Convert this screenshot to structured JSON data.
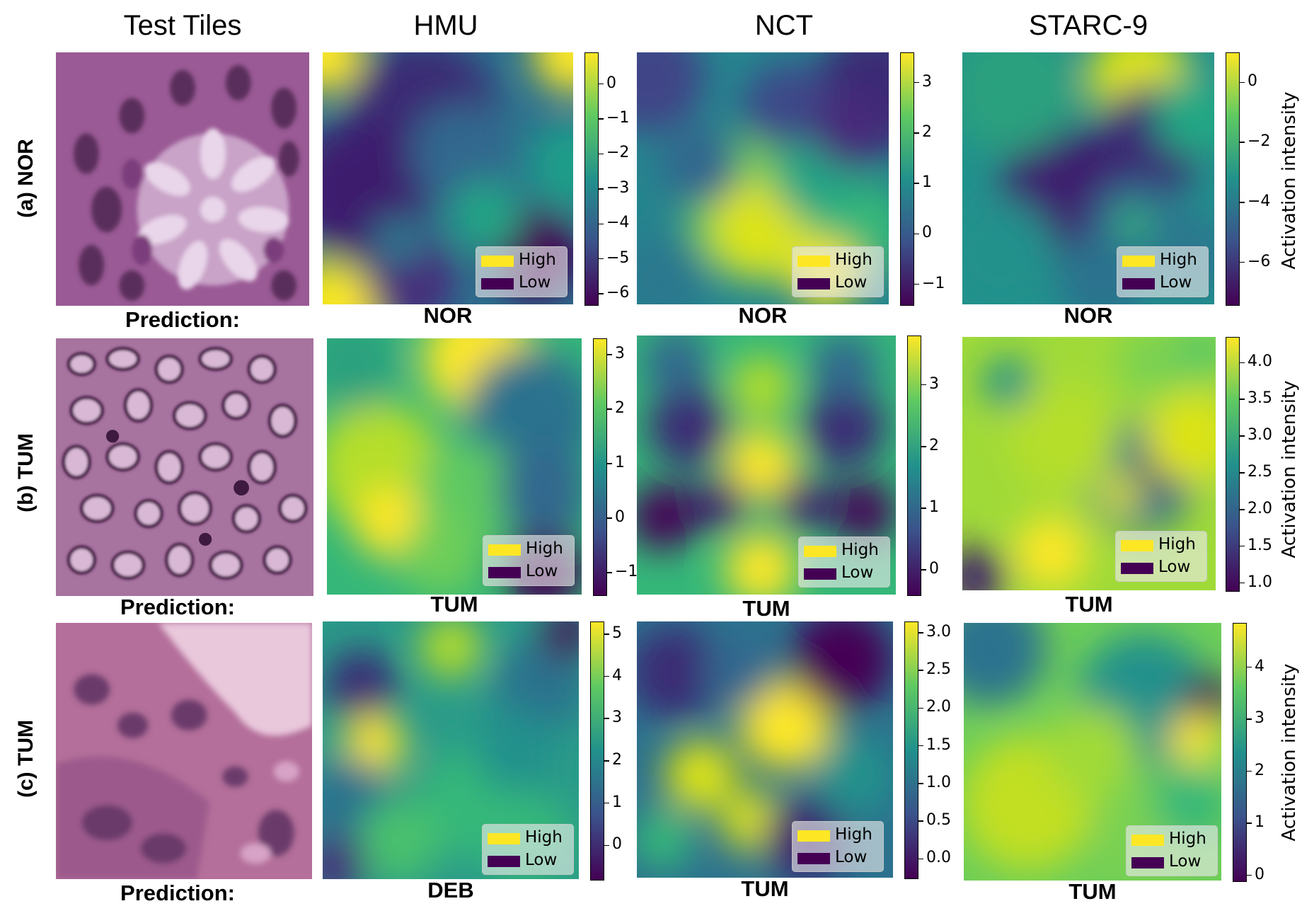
{
  "chart_data": {
    "type": "heatmap",
    "columns": [
      "Test Tiles",
      "HMU",
      "NCT",
      "STARC-9"
    ],
    "prediction_label": "Prediction:",
    "legend": {
      "high": "High",
      "low": "Low"
    },
    "colorbar_label": "Activation intensity",
    "colormap": {
      "high": "#fde725",
      "low": "#440154"
    },
    "rows": [
      {
        "label": "(a) NOR",
        "panels": [
          {
            "model": "HMU",
            "prediction": "NOR",
            "ticks": [
              "0",
              "−1",
              "−2",
              "−3",
              "−4",
              "−5",
              "−6"
            ],
            "range": [
              -6.3,
              0.9
            ]
          },
          {
            "model": "NCT",
            "prediction": "NOR",
            "ticks": [
              "3",
              "2",
              "1",
              "0",
              "−1"
            ],
            "range": [
              -1.4,
              3.6
            ]
          },
          {
            "model": "STARC-9",
            "prediction": "NOR",
            "ticks": [
              "0",
              "−2",
              "−4",
              "−6"
            ],
            "range": [
              -7.4,
              1.0
            ]
          }
        ]
      },
      {
        "label": "(b) TUM",
        "panels": [
          {
            "model": "HMU",
            "prediction": "TUM",
            "ticks": [
              "3",
              "2",
              "1",
              "0",
              "−1"
            ],
            "range": [
              -1.4,
              3.3
            ]
          },
          {
            "model": "NCT",
            "prediction": "TUM",
            "ticks": [
              "3",
              "2",
              "1",
              "0"
            ],
            "range": [
              -0.4,
              3.8
            ]
          },
          {
            "model": "STARC-9",
            "prediction": "TUM",
            "ticks": [
              "4.0",
              "3.5",
              "3.0",
              "2.5",
              "2.0",
              "1.5",
              "1.0"
            ],
            "range": [
              0.9,
              4.35
            ]
          }
        ]
      },
      {
        "label": "(c) TUM",
        "panels": [
          {
            "model": "HMU",
            "prediction": "DEB",
            "ticks": [
              "5",
              "4",
              "3",
              "2",
              "1",
              "0"
            ],
            "range": [
              -0.8,
              5.3
            ]
          },
          {
            "model": "NCT",
            "prediction": "TUM",
            "ticks": [
              "3.0",
              "2.5",
              "2.0",
              "1.5",
              "1.0",
              "0.5",
              "0.0"
            ],
            "range": [
              -0.25,
              3.15
            ]
          },
          {
            "model": "STARC-9",
            "prediction": "TUM",
            "ticks": [
              "4",
              "3",
              "2",
              "1",
              "0"
            ],
            "range": [
              -0.1,
              4.85
            ]
          }
        ]
      }
    ]
  }
}
